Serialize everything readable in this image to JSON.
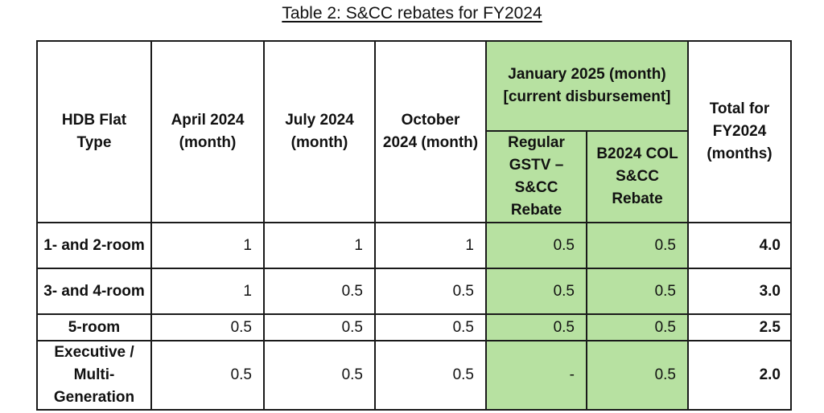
{
  "caption": "Table 2: S&CC rebates for FY2024",
  "colors": {
    "highlight": "#b7e1a1",
    "border": "#1a1a1a"
  },
  "headers": {
    "flat_type": "HDB Flat Type",
    "april": "April 2024 (month)",
    "july": "July 2024 (month)",
    "october": "October 2024 (month)",
    "january_group": "January 2025 (month) [current disbursement]",
    "regular": "Regular GSTV – S&CC Rebate",
    "b2024": "B2024 COL S&CC Rebate",
    "total": "Total for FY2024 (months)"
  },
  "rows": [
    {
      "type": "1- and 2-room",
      "april": "1",
      "july": "1",
      "october": "1",
      "regular": "0.5",
      "b2024": "0.5",
      "total": "4.0"
    },
    {
      "type": "3- and 4-room",
      "april": "1",
      "july": "0.5",
      "october": "0.5",
      "regular": "0.5",
      "b2024": "0.5",
      "total": "3.0"
    },
    {
      "type": "5-room",
      "april": "0.5",
      "july": "0.5",
      "october": "0.5",
      "regular": "0.5",
      "b2024": "0.5",
      "total": "2.5"
    },
    {
      "type": "Executive / Multi-Generation",
      "april": "0.5",
      "july": "0.5",
      "october": "0.5",
      "regular": "-",
      "b2024": "0.5",
      "total": "2.0"
    }
  ]
}
